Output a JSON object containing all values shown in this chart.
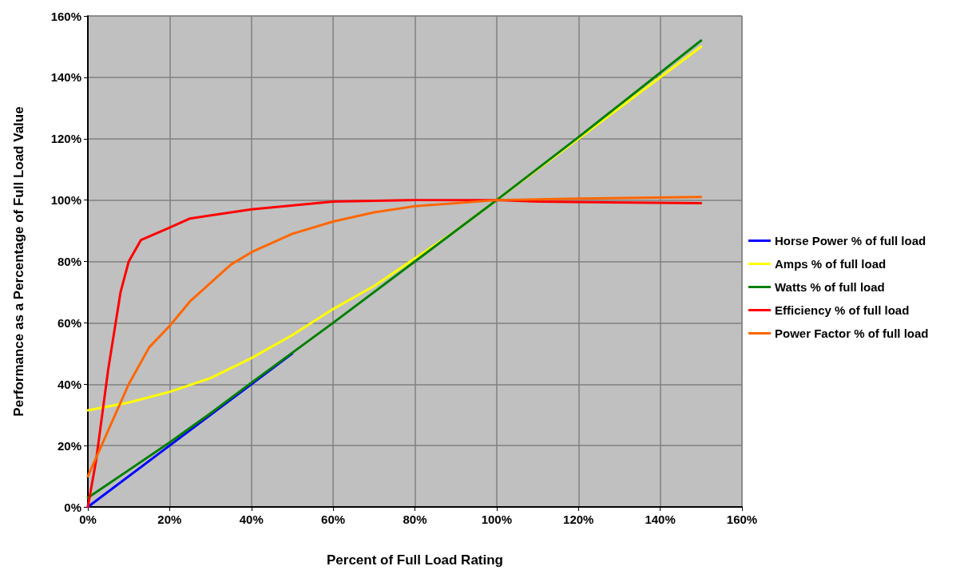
{
  "chart_data": {
    "type": "line",
    "xlabel": "Percent of Full Load Rating",
    "ylabel": "Performance as a Percentage of Full Load Value",
    "xlim": [
      0,
      160
    ],
    "ylim": [
      0,
      160
    ],
    "xticks": [
      {
        "value": 0,
        "label": "0%"
      },
      {
        "value": 20,
        "label": "20%"
      },
      {
        "value": 40,
        "label": "40%"
      },
      {
        "value": 60,
        "label": "60%"
      },
      {
        "value": 80,
        "label": "80%"
      },
      {
        "value": 100,
        "label": "100%"
      },
      {
        "value": 120,
        "label": "120%"
      },
      {
        "value": 140,
        "label": "140%"
      },
      {
        "value": 160,
        "label": "160%"
      }
    ],
    "yticks": [
      {
        "value": 0,
        "label": "0%"
      },
      {
        "value": 20,
        "label": "20%"
      },
      {
        "value": 40,
        "label": "40%"
      },
      {
        "value": 60,
        "label": "60%"
      },
      {
        "value": 80,
        "label": "80%"
      },
      {
        "value": 100,
        "label": "100%"
      },
      {
        "value": 120,
        "label": "120%"
      },
      {
        "value": 140,
        "label": "140%"
      },
      {
        "value": 160,
        "label": "160%"
      }
    ],
    "grid": true,
    "legend": "right",
    "marker": "none",
    "line_style": "solid",
    "series": [
      {
        "name": "Horse Power % of full load",
        "color": "#0000ff",
        "x": [
          0,
          20,
          40,
          50
        ],
        "values": [
          0,
          20,
          40,
          50
        ]
      },
      {
        "name": "Amps % of full load",
        "color": "#ffff00",
        "x": [
          0,
          10,
          20,
          30,
          40,
          50,
          60,
          70,
          80,
          90,
          100,
          120,
          150
        ],
        "values": [
          31.5,
          34,
          37.5,
          42,
          48.5,
          56,
          64.5,
          72,
          81,
          90,
          100,
          120,
          150
        ]
      },
      {
        "name": "Watts % of full load",
        "color": "#008000",
        "x": [
          0,
          10,
          20,
          30,
          40,
          60,
          80,
          100,
          120,
          150
        ],
        "values": [
          3,
          12,
          21,
          30.5,
          40.5,
          60,
          80,
          100,
          120.5,
          152
        ]
      },
      {
        "name": "Efficiency % of full load",
        "color": "#ff0000",
        "x": [
          0,
          2,
          5,
          8,
          10,
          13,
          20,
          25,
          40,
          60,
          80,
          100,
          110,
          150
        ],
        "values": [
          0,
          15,
          45,
          70,
          80,
          87,
          91,
          94,
          97,
          99.5,
          100,
          100,
          99.5,
          99
        ]
      },
      {
        "name": "Power Factor % of full load",
        "color": "#ff6600",
        "x": [
          0,
          5,
          10,
          15,
          20,
          25,
          30,
          35,
          40,
          50,
          60,
          70,
          80,
          90,
          100,
          120,
          150
        ],
        "values": [
          10,
          25,
          40,
          52,
          59,
          67,
          73,
          79,
          83,
          89,
          93,
          96,
          98,
          99,
          100,
          100.5,
          101
        ]
      }
    ]
  }
}
